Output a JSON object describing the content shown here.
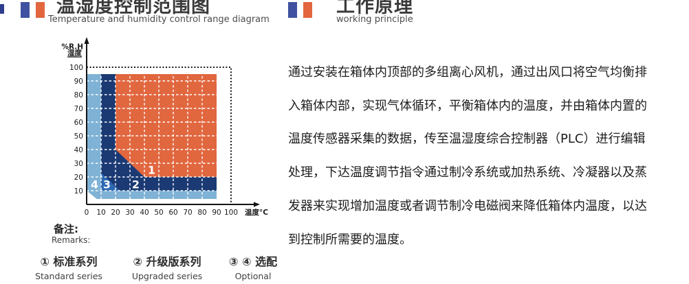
{
  "colors": {
    "flag_blue": "#3f51a0",
    "flag_orange": "#e2663e",
    "region_light_blue": "#7fb2d5",
    "region_medium_blue": "#2d68b2",
    "region_navy": "#1b3a74",
    "region_orange": "#e1673f",
    "axis": "#141414",
    "edge_fragment": "#2e3e8e"
  },
  "left_header": {
    "title": "温湿度控制范围图",
    "subtitle": "Temperature and humidity control range diagram"
  },
  "right_header": {
    "title": "工作原理",
    "subtitle": "working principle"
  },
  "chart_data": {
    "type": "area",
    "title": "温湿度控制范围图",
    "xlabel": "温度°C",
    "ylabel_line1": "%R.H",
    "ylabel_line2": "湿度",
    "x_ticks": [
      0,
      10,
      20,
      30,
      40,
      50,
      60,
      70,
      80,
      90,
      100
    ],
    "y_ticks": [
      10,
      20,
      30,
      40,
      50,
      60,
      70,
      80,
      90,
      100
    ],
    "xlim": [
      0,
      100
    ],
    "ylim": [
      0,
      100
    ],
    "grid": {
      "color": "#ffffff",
      "v_lines": [
        10,
        20,
        30,
        40,
        50,
        60,
        70,
        80
      ],
      "v_extent": [
        4,
        95
      ],
      "h_lines": [
        10,
        20,
        30,
        40,
        50,
        60,
        70,
        80,
        90
      ],
      "h_extent": [
        0,
        90
      ]
    },
    "frame": {
      "style": "dotted",
      "points": [
        [
          0,
          100
        ],
        [
          100,
          100
        ],
        [
          100,
          0
        ]
      ]
    },
    "regions": [
      {
        "id": "4",
        "series": "optional",
        "color": "#7fb2d5",
        "points": [
          [
            0,
            95
          ],
          [
            90,
            95
          ],
          [
            90,
            4
          ],
          [
            7,
            4
          ],
          [
            0,
            10
          ]
        ],
        "label": {
          "text": "4",
          "x": 5.5,
          "y": 14.5
        }
      },
      {
        "id": "2",
        "series": "upgraded",
        "color": "#1b3a74",
        "points": [
          [
            10,
            95
          ],
          [
            90,
            95
          ],
          [
            90,
            10
          ],
          [
            10,
            10
          ]
        ],
        "label": {
          "text": "2",
          "x": 34,
          "y": 14.5
        }
      },
      {
        "id": "3",
        "series": "optional",
        "color": "#2d68b2",
        "points": [
          [
            10,
            23
          ],
          [
            23,
            10
          ],
          [
            10,
            10
          ]
        ],
        "label": {
          "text": "3",
          "x": 14,
          "y": 14.5
        }
      },
      {
        "id": "1",
        "series": "standard",
        "color": "#e1673f",
        "points": [
          [
            20,
            95
          ],
          [
            90,
            95
          ],
          [
            90,
            20
          ],
          [
            40,
            20
          ],
          [
            20,
            40
          ]
        ],
        "label": {
          "text": "1",
          "x": 45,
          "y": 25
        }
      }
    ]
  },
  "remarks": {
    "zh": "备注:",
    "en": "Remarks:"
  },
  "legend": [
    {
      "zh": "① 标准系列",
      "en": "Standard series"
    },
    {
      "zh": "② 升级版系列",
      "en": "Upgraded series"
    },
    {
      "zh": "③ ④ 选配",
      "en": "Optional"
    }
  ],
  "principle": {
    "text": "通过安装在箱体内顶部的多组离心风机，通过出风口将空气均衡排\n入箱体内部，实现气体循环，平衡箱体内的温度，并由箱体内置的\n温度传感器采集的数据，传至温湿度综合控制器（PLC）进行编辑\n处理，下达温度调节指令通过制冷系统或加热系统、冷凝器以及蒸\n发器来实现增加温度或者调节制冷电磁阀来降低箱体内温度，以达\n到控制所需要的温度。"
  }
}
